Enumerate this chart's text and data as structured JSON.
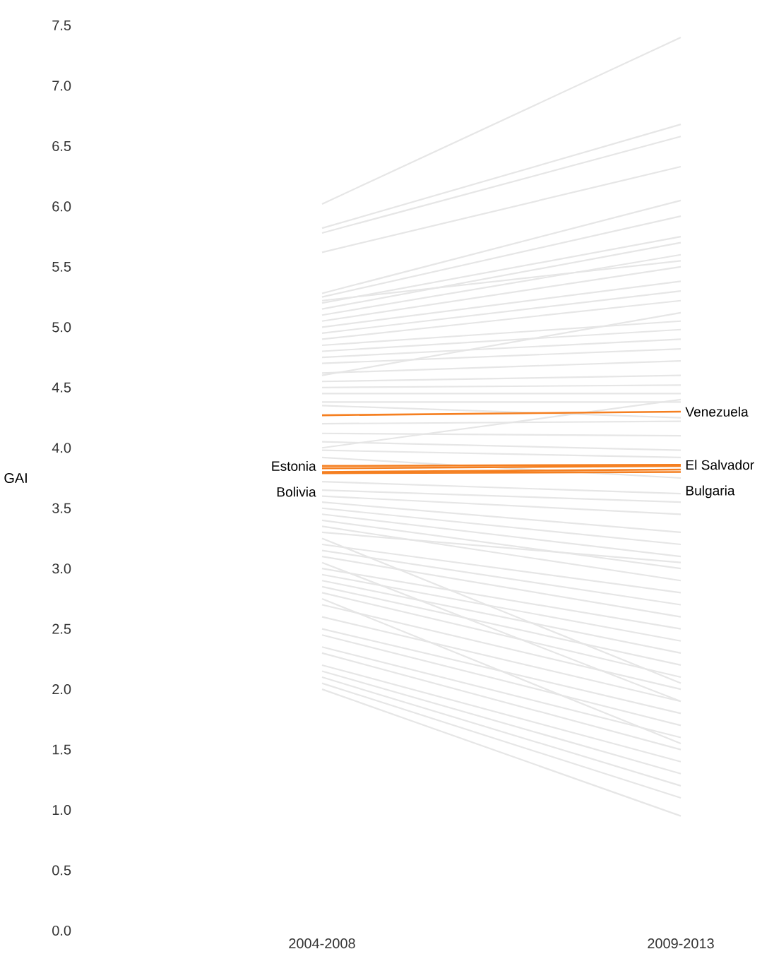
{
  "chart_data": {
    "type": "line",
    "ylabel": "GAI",
    "categories": [
      "2004-2008",
      "2009-2013"
    ],
    "ylim": [
      0,
      7.5
    ],
    "yticks": [
      {
        "value": 0,
        "label": "0.0"
      },
      {
        "value": 0.5,
        "label": "0.5"
      },
      {
        "value": 1,
        "label": "1.0"
      },
      {
        "value": 1.5,
        "label": "1.5"
      },
      {
        "value": 2,
        "label": "2.0"
      },
      {
        "value": 2.5,
        "label": "2.5"
      },
      {
        "value": 3,
        "label": "3.0"
      },
      {
        "value": 3.5,
        "label": "3.5"
      },
      {
        "value": 4,
        "label": "4.0"
      },
      {
        "value": 4.5,
        "label": "4.5"
      },
      {
        "value": 5,
        "label": "5.0"
      },
      {
        "value": 5.5,
        "label": "5.5"
      },
      {
        "value": 6,
        "label": "6.0"
      },
      {
        "value": 6.5,
        "label": "6.5"
      },
      {
        "value": 7,
        "label": "7.0"
      },
      {
        "value": 7.5,
        "label": "7.5"
      }
    ],
    "marker": "none",
    "line_style": "solid",
    "series": [
      {
        "color": "#e6e6e6",
        "values": [
          6.02,
          7.4
        ]
      },
      {
        "color": "#e6e6e6",
        "values": [
          5.82,
          6.68
        ]
      },
      {
        "color": "#e6e6e6",
        "values": [
          5.78,
          6.58
        ]
      },
      {
        "color": "#e6e6e6",
        "values": [
          5.62,
          6.33
        ]
      },
      {
        "color": "#e6e6e6",
        "values": [
          5.28,
          6.05
        ]
      },
      {
        "color": "#e6e6e6",
        "values": [
          5.25,
          5.92
        ]
      },
      {
        "color": "#e6e6e6",
        "values": [
          5.2,
          5.75
        ]
      },
      {
        "color": "#e6e6e6",
        "values": [
          5.15,
          5.7
        ]
      },
      {
        "color": "#e6e6e6",
        "values": [
          5.1,
          5.6
        ]
      },
      {
        "color": "#e6e6e6",
        "values": [
          5.05,
          5.5
        ]
      },
      {
        "color": "#e6e6e6",
        "values": [
          5.0,
          5.38
        ]
      },
      {
        "color": "#e6e6e6",
        "values": [
          4.95,
          5.3
        ]
      },
      {
        "color": "#e6e6e6",
        "values": [
          4.9,
          5.22
        ]
      },
      {
        "color": "#e6e6e6",
        "values": [
          4.85,
          5.05
        ]
      },
      {
        "color": "#e6e6e6",
        "values": [
          4.8,
          4.98
        ]
      },
      {
        "color": "#e6e6e6",
        "values": [
          4.75,
          4.9
        ]
      },
      {
        "color": "#e6e6e6",
        "values": [
          4.7,
          4.82
        ]
      },
      {
        "color": "#e6e6e6",
        "values": [
          4.62,
          4.72
        ]
      },
      {
        "color": "#e6e6e6",
        "values": [
          4.55,
          4.6
        ]
      },
      {
        "color": "#e6e6e6",
        "values": [
          4.5,
          4.52
        ]
      },
      {
        "color": "#e6e6e6",
        "values": [
          4.45,
          4.45
        ]
      },
      {
        "color": "#e6e6e6",
        "values": [
          4.38,
          4.38
        ]
      },
      {
        "color": "#e6e6e6",
        "values": [
          4.35,
          4.25
        ]
      },
      {
        "color": "#e6e6e6",
        "values": [
          4.2,
          4.22
        ]
      },
      {
        "color": "#e6e6e6",
        "values": [
          4.12,
          4.1
        ]
      },
      {
        "color": "#e6e6e6",
        "values": [
          4.05,
          3.98
        ]
      },
      {
        "color": "#e6e6e6",
        "values": [
          3.98,
          3.92
        ]
      },
      {
        "color": "#e6e6e6",
        "values": [
          3.92,
          3.75
        ]
      },
      {
        "color": "#e6e6e6",
        "values": [
          3.72,
          3.62
        ]
      },
      {
        "color": "#e6e6e6",
        "values": [
          3.65,
          3.55
        ]
      },
      {
        "color": "#e6e6e6",
        "values": [
          3.6,
          3.45
        ]
      },
      {
        "color": "#e6e6e6",
        "values": [
          3.55,
          3.3
        ]
      },
      {
        "color": "#e6e6e6",
        "values": [
          3.5,
          3.2
        ]
      },
      {
        "color": "#e6e6e6",
        "values": [
          3.45,
          3.1
        ]
      },
      {
        "color": "#e6e6e6",
        "values": [
          3.4,
          3.0
        ]
      },
      {
        "color": "#e6e6e6",
        "values": [
          3.35,
          2.9
        ]
      },
      {
        "color": "#e6e6e6",
        "values": [
          3.3,
          3.05
        ]
      },
      {
        "color": "#e6e6e6",
        "values": [
          3.2,
          2.8
        ]
      },
      {
        "color": "#e6e6e6",
        "values": [
          3.15,
          2.7
        ]
      },
      {
        "color": "#e6e6e6",
        "values": [
          3.1,
          2.6
        ]
      },
      {
        "color": "#e6e6e6",
        "values": [
          3.0,
          2.5
        ]
      },
      {
        "color": "#e6e6e6",
        "values": [
          2.95,
          2.4
        ]
      },
      {
        "color": "#e6e6e6",
        "values": [
          2.9,
          2.3
        ]
      },
      {
        "color": "#e6e6e6",
        "values": [
          2.85,
          2.2
        ]
      },
      {
        "color": "#e6e6e6",
        "values": [
          2.8,
          2.1
        ]
      },
      {
        "color": "#e6e6e6",
        "values": [
          2.7,
          2.0
        ]
      },
      {
        "color": "#e6e6e6",
        "values": [
          2.6,
          1.9
        ]
      },
      {
        "color": "#e6e6e6",
        "values": [
          2.5,
          1.8
        ]
      },
      {
        "color": "#e6e6e6",
        "values": [
          2.45,
          1.7
        ]
      },
      {
        "color": "#e6e6e6",
        "values": [
          2.35,
          1.6
        ]
      },
      {
        "color": "#e6e6e6",
        "values": [
          2.3,
          1.5
        ]
      },
      {
        "color": "#e6e6e6",
        "values": [
          2.2,
          1.4
        ]
      },
      {
        "color": "#e6e6e6",
        "values": [
          2.15,
          1.3
        ]
      },
      {
        "color": "#e6e6e6",
        "values": [
          2.1,
          1.2
        ]
      },
      {
        "color": "#e6e6e6",
        "values": [
          2.05,
          1.1
        ]
      },
      {
        "color": "#e6e6e6",
        "values": [
          2.0,
          0.95
        ]
      },
      {
        "color": "#e6e6e6",
        "values": [
          3.05,
          1.9
        ]
      },
      {
        "color": "#e6e6e6",
        "values": [
          2.75,
          1.55
        ]
      },
      {
        "color": "#e6e6e6",
        "values": [
          3.25,
          2.05
        ]
      },
      {
        "color": "#e6e6e6",
        "values": [
          4.0,
          4.4
        ]
      },
      {
        "color": "#e6e6e6",
        "values": [
          4.6,
          5.12
        ]
      },
      {
        "color": "#e6e6e6",
        "values": [
          5.22,
          5.55
        ]
      },
      {
        "color": "#f57f20",
        "values": [
          4.27,
          4.3
        ]
      },
      {
        "color": "#f57f20",
        "values": [
          3.85,
          3.86
        ]
      },
      {
        "color": "#f57f20",
        "values": [
          3.83,
          3.85
        ]
      },
      {
        "color": "#f57f20",
        "values": [
          3.8,
          3.82
        ]
      },
      {
        "color": "#f57f20",
        "values": [
          3.79,
          3.8
        ]
      }
    ],
    "annotations": [
      {
        "text": "Venezuela",
        "x": "2009-2013",
        "y": 4.3
      },
      {
        "text": "El Salvador",
        "x": "2009-2013",
        "y": 3.86
      },
      {
        "text": "Bulgaria",
        "x": "2009-2013",
        "y": 3.8
      },
      {
        "text": "Estonia",
        "x": "2004-2008",
        "y": 3.85
      },
      {
        "text": "Bolivia",
        "x": "2004-2008",
        "y": 3.8
      }
    ]
  }
}
